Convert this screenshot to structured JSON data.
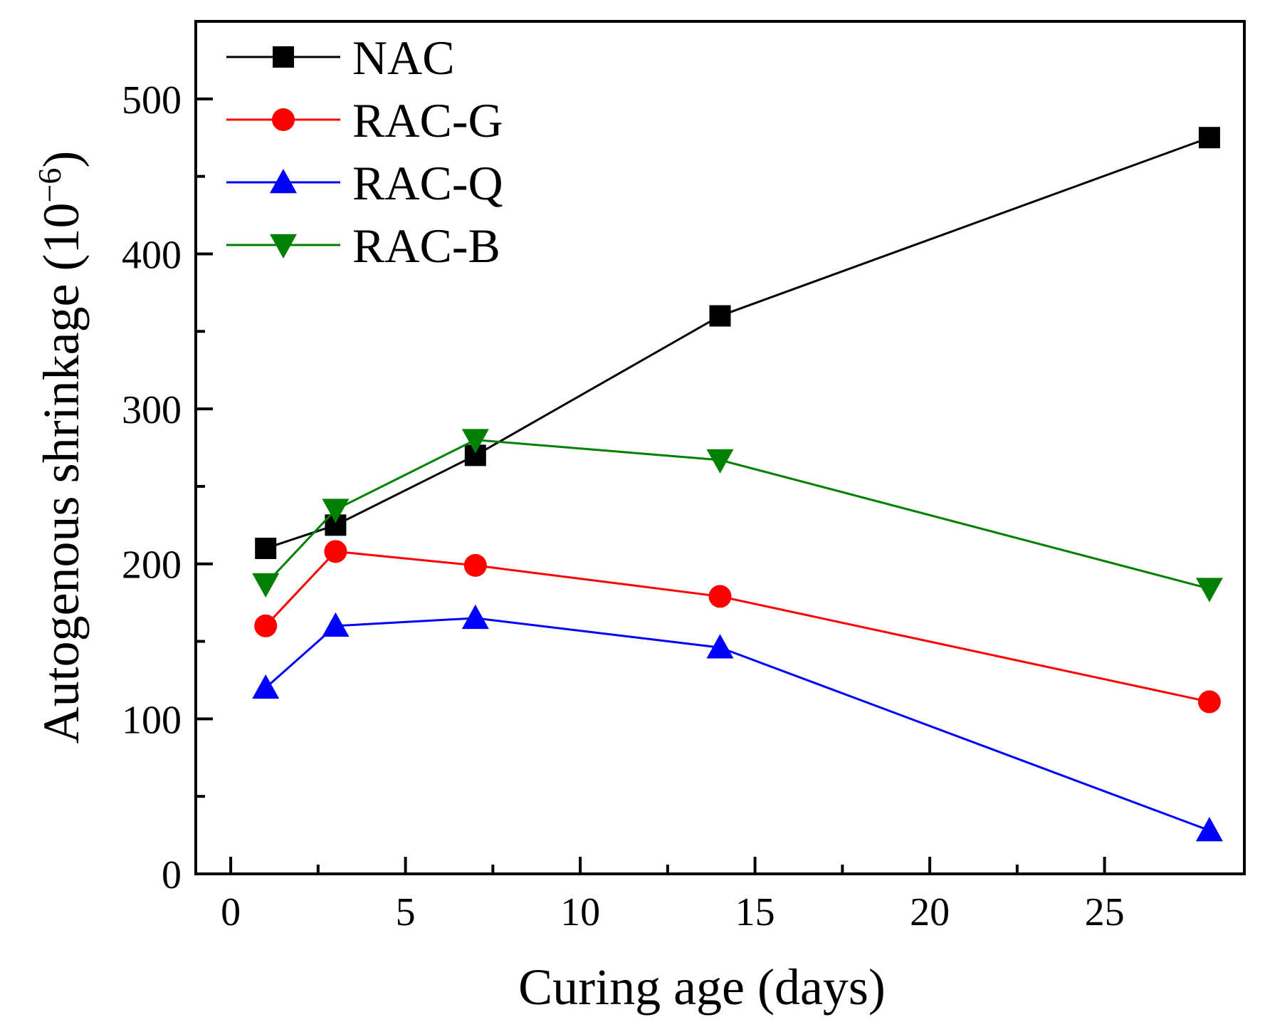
{
  "chart_data": {
    "type": "line",
    "title": "",
    "xlabel": "Curing age (days)",
    "ylabel": "Autogenous shrinkage (10",
    "ylabel_exponent": "−6",
    "ylabel_close": ")",
    "xlim": [
      -1,
      29
    ],
    "ylim": [
      0,
      550
    ],
    "x_ticks": [
      0,
      5,
      10,
      15,
      20,
      25
    ],
    "y_ticks": [
      0,
      100,
      200,
      300,
      400,
      500
    ],
    "grid": false,
    "legend_position": "top-left",
    "x": [
      1,
      3,
      7,
      14,
      28
    ],
    "series": [
      {
        "name": "NAC",
        "marker": "square",
        "color": "#000000",
        "values": [
          210,
          225,
          270,
          360,
          475
        ]
      },
      {
        "name": "RAC-G",
        "marker": "circle",
        "color": "#ff0000",
        "values": [
          160,
          208,
          199,
          179,
          111
        ]
      },
      {
        "name": "RAC-Q",
        "marker": "triangle-up",
        "color": "#0000ff",
        "values": [
          120,
          160,
          165,
          146,
          28
        ]
      },
      {
        "name": "RAC-B",
        "marker": "triangle-down",
        "color": "#008000",
        "values": [
          187,
          235,
          280,
          267,
          184
        ]
      }
    ]
  }
}
